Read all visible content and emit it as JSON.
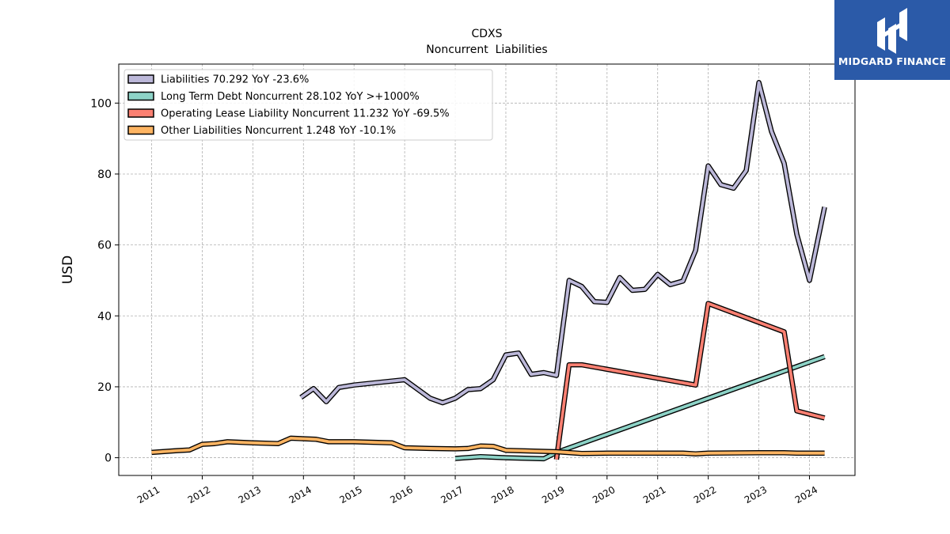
{
  "chart_data": {
    "type": "line",
    "title": "CDXS",
    "subtitle": "Noncurrent  Liabilities",
    "ylabel": "USD",
    "xlabel": "",
    "xlim": [
      2010.35,
      2024.9
    ],
    "ylim": [
      -5,
      111
    ],
    "yticks": [
      0,
      20,
      40,
      60,
      80,
      100
    ],
    "xticks": [
      2011,
      2012,
      2013,
      2014,
      2015,
      2016,
      2017,
      2018,
      2019,
      2020,
      2021,
      2022,
      2023,
      2024
    ],
    "grid": true,
    "legend_position": "top-left",
    "series": [
      {
        "name": "Liabilities  70.292 YoY -23.6%",
        "color": "#bcb8d9",
        "x": [
          2013.95,
          2014.2,
          2014.45,
          2014.7,
          2015.0,
          2016.0,
          2016.5,
          2016.75,
          2017.0,
          2017.25,
          2017.5,
          2017.75,
          2018.0,
          2018.25,
          2018.5,
          2018.75,
          2019.0,
          2019.25,
          2019.5,
          2019.75,
          2020.0,
          2020.25,
          2020.5,
          2020.75,
          2021.0,
          2021.25,
          2021.5,
          2021.75,
          2022.0,
          2022.25,
          2022.5,
          2022.75,
          2023.0,
          2023.25,
          2023.5,
          2023.75,
          2024.0,
          2024.3
        ],
        "y": [
          17.0,
          19.5,
          15.8,
          19.8,
          20.5,
          22.0,
          16.8,
          15.5,
          16.8,
          19.2,
          19.5,
          22.0,
          29.0,
          29.5,
          23.5,
          24.0,
          23.2,
          50.0,
          48.3,
          44.0,
          43.8,
          50.8,
          47.2,
          47.5,
          51.7,
          48.8,
          49.8,
          58.5,
          82.3,
          77.0,
          76.0,
          81.0,
          105.8,
          92.0,
          83.0,
          63.0,
          50.0,
          70.7
        ]
      },
      {
        "name": "Long Term Debt Noncurrent  28.102 YoY >+1000%",
        "color": "#8dd3c7",
        "x": [
          2017.0,
          2017.5,
          2018.0,
          2018.75,
          2019.0,
          2024.3
        ],
        "y": [
          -0.2,
          0.3,
          0.0,
          -0.3,
          1.5,
          28.5
        ]
      },
      {
        "name": "Operating Lease Liability Noncurrent  11.232 YoY -69.5%",
        "color": "#fb8072",
        "x": [
          2019.0,
          2019.25,
          2019.5,
          2021.75,
          2022.0,
          2023.5,
          2023.75,
          2024.3
        ],
        "y": [
          -0.5,
          26.2,
          26.2,
          20.5,
          43.5,
          35.5,
          13.2,
          11.2
        ]
      },
      {
        "name": "Other Liabilities Noncurrent  1.248 YoY -10.1%",
        "color": "#fdb462",
        "x": [
          2011.0,
          2011.5,
          2011.75,
          2012.0,
          2012.25,
          2012.5,
          2013.0,
          2013.5,
          2013.75,
          2014.25,
          2014.5,
          2015.0,
          2015.75,
          2016.0,
          2016.5,
          2017.0,
          2017.25,
          2017.5,
          2017.75,
          2018.0,
          2018.5,
          2019.0,
          2019.5,
          2020.0,
          2021.0,
          2021.5,
          2021.75,
          2022.0,
          2023.0,
          2023.5,
          2023.75,
          2024.3
        ],
        "y": [
          1.5,
          2.0,
          2.2,
          3.8,
          4.0,
          4.5,
          4.2,
          4.0,
          5.5,
          5.2,
          4.5,
          4.5,
          4.2,
          2.8,
          2.6,
          2.5,
          2.6,
          3.3,
          3.2,
          2.1,
          1.9,
          1.7,
          1.2,
          1.3,
          1.3,
          1.3,
          1.1,
          1.3,
          1.4,
          1.4,
          1.3,
          1.3
        ]
      }
    ]
  },
  "logo": {
    "text": "MIDGARD FINANCE"
  }
}
